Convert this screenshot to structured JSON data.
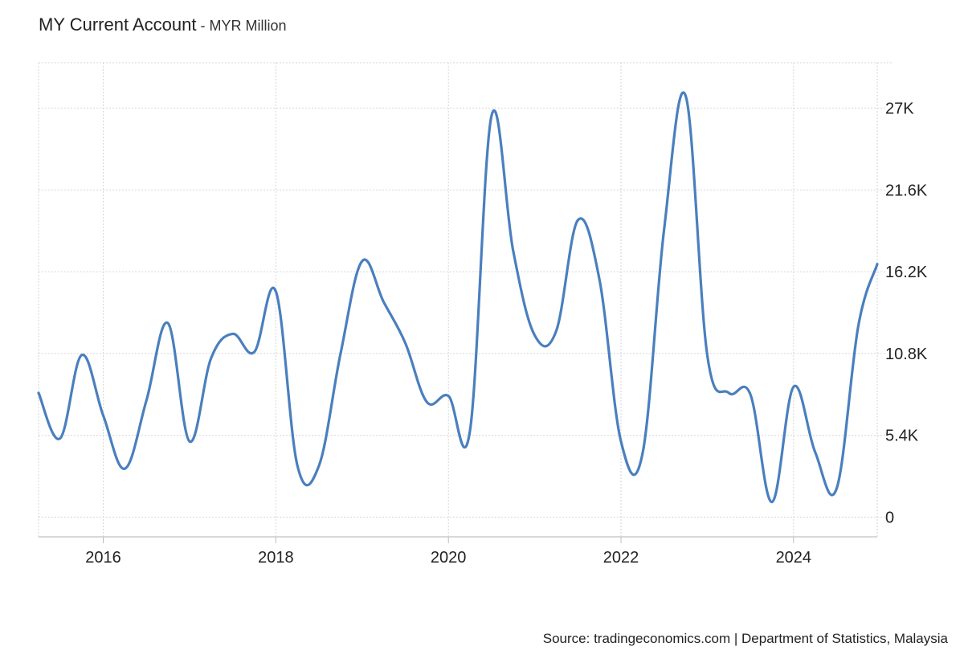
{
  "header": {
    "title": "MY Current Account",
    "subtitle": " - MYR Million"
  },
  "footer": {
    "source": "Source: tradingeconomics.com | Department of Statistics, Malaysia"
  },
  "chart_data": {
    "type": "line",
    "title": "MY Current Account",
    "ylabel": "MYR Million",
    "xlabel": "",
    "x_ticks": [
      "2016",
      "2018",
      "2020",
      "2022",
      "2024"
    ],
    "x_tick_values": [
      2016,
      2018,
      2020,
      2022,
      2024
    ],
    "y_ticks": [
      "0",
      "5.4K",
      "10.8K",
      "16.2K",
      "21.6K",
      "27K"
    ],
    "y_tick_values": [
      0,
      5400,
      10800,
      16200,
      21600,
      27000
    ],
    "ylim": [
      -1300,
      30000
    ],
    "xlim": [
      2015.25,
      2024.97
    ],
    "grid": true,
    "color": "#4a7fbe",
    "series": [
      {
        "x": [
          2015.25,
          2015.5,
          2015.75,
          2016.0,
          2016.25,
          2016.5,
          2016.75,
          2017.0,
          2017.25,
          2017.5,
          2017.75,
          2018.0,
          2018.25,
          2018.5,
          2018.75,
          2019.0,
          2019.25,
          2019.5,
          2019.75,
          2020.0,
          2020.25,
          2020.5,
          2020.75,
          2021.0,
          2021.25,
          2021.5,
          2021.75,
          2022.0,
          2022.25,
          2022.5,
          2022.75,
          2023.0,
          2023.25,
          2023.5,
          2023.75,
          2024.0,
          2024.25,
          2024.5,
          2024.75,
          2024.97
        ],
        "values": [
          8200,
          5200,
          10700,
          6700,
          3200,
          7700,
          12800,
          5000,
          10500,
          12100,
          10900,
          14900,
          3400,
          3400,
          10800,
          16900,
          14200,
          11500,
          7600,
          8000,
          5700,
          26500,
          17600,
          12000,
          12300,
          19600,
          15700,
          5000,
          4200,
          19000,
          27800,
          10700,
          8200,
          8100,
          1000,
          8600,
          4300,
          1900,
          12600,
          16700
        ]
      }
    ]
  }
}
